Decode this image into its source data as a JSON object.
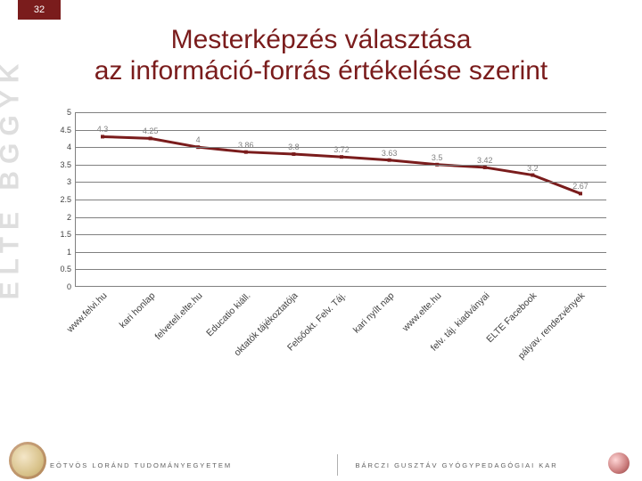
{
  "page_number": "32",
  "watermark": "ELTE BGGYK",
  "title_line1": "Mesterképzés választása",
  "title_line2": "az információ-forrás értékelése szerint",
  "footer_left": "EÖTVÖS LORÁND TUDOMÁNYEGYETEM",
  "footer_right": "BÁRCZI GUSZTÁV GYÓGYPEDAGÓGIAI KAR",
  "chart": {
    "type": "line",
    "ylim": [
      0,
      5
    ],
    "ytick_step": 0.5,
    "yticks": [
      "0",
      "0.5",
      "1",
      "1.5",
      "2",
      "2.5",
      "3",
      "3.5",
      "4",
      "4.5",
      "5"
    ],
    "line_color": "#7a1c1c",
    "line_width": 3,
    "marker_size": 4,
    "marker_color": "#7a1c1c",
    "grid_color": "#808080",
    "label_color": "#808080",
    "label_fontsize": 9,
    "xlabel_fontsize": 10.5,
    "xlabel_rotation": -45,
    "categories": [
      "www.felvi.hu",
      "kari honlap",
      "felveteli.elte.hu",
      "Educatio kiáll.",
      "oktatók tájékoztatója",
      "Felsőokt. Felv. Táj.",
      "kari nyílt nap",
      "www.elte.hu",
      "felv. táj. kiadványai",
      "ELTE Facebook",
      "pályav. rendezvények"
    ],
    "values": [
      4.3,
      4.25,
      4,
      3.86,
      3.8,
      3.72,
      3.63,
      3.5,
      3.42,
      3.2,
      2.67
    ],
    "point_labels": [
      "4.3",
      "4.25",
      "4",
      "3.86",
      "3.8",
      "3.72",
      "3.63",
      "3.5",
      "3.42",
      "3.2",
      "2.67"
    ]
  }
}
